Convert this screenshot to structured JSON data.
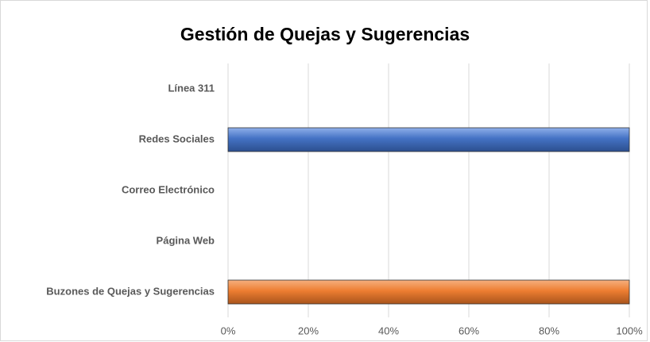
{
  "chart_data": {
    "type": "bar",
    "orientation": "horizontal",
    "title": "Gestión de Quejas y Sugerencias",
    "categories": [
      "Línea 311",
      "Redes Sociales",
      "Correo Electrónico",
      "Página Web",
      "Buzones de Quejas y Sugerencias"
    ],
    "values": [
      0,
      100,
      0,
      0,
      100
    ],
    "colors": [
      "#4472c4",
      "#4472c4",
      "#4472c4",
      "#4472c4",
      "#ed7d31"
    ],
    "xlim": [
      0,
      100
    ],
    "xticks": [
      {
        "value": 0,
        "label": "0%"
      },
      {
        "value": 20,
        "label": "20%"
      },
      {
        "value": 40,
        "label": "40%"
      },
      {
        "value": 60,
        "label": "60%"
      },
      {
        "value": 80,
        "label": "80%"
      },
      {
        "value": 100,
        "label": "100%"
      }
    ],
    "grid": true
  }
}
